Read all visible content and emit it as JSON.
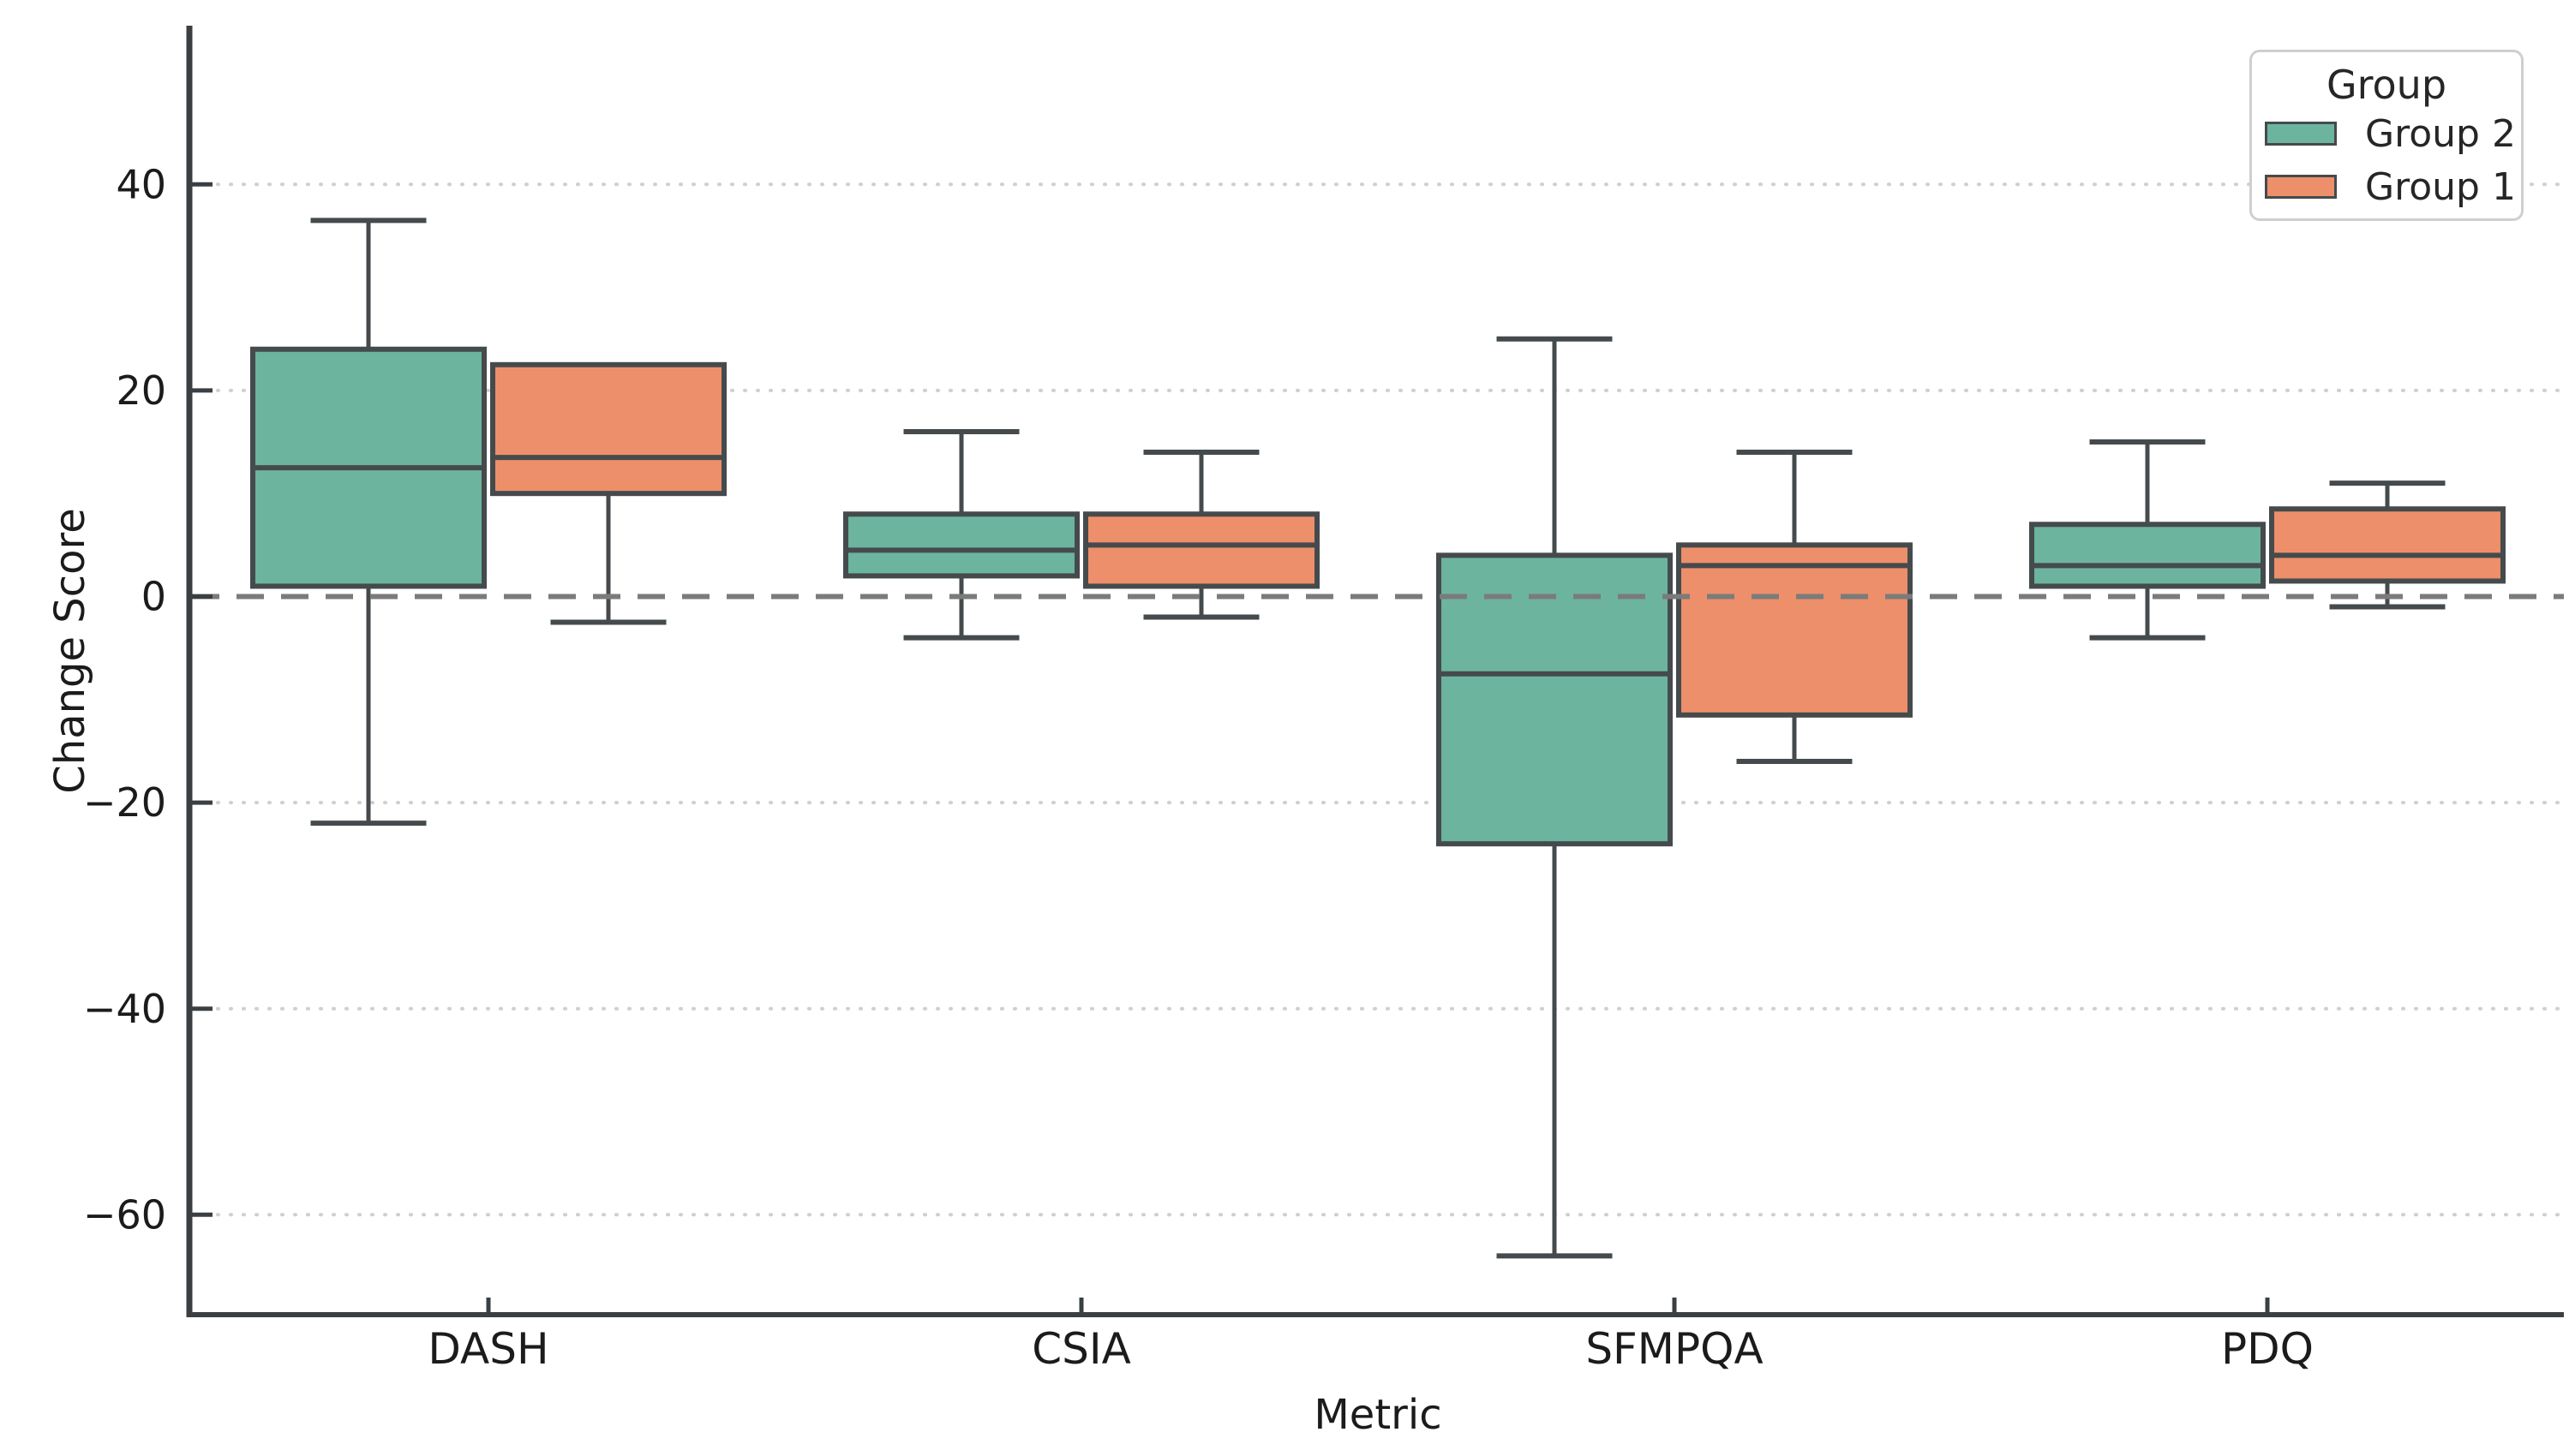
{
  "figure": {
    "background_color": "#ffffff"
  },
  "chart_data": {
    "type": "box",
    "title": "",
    "xlabel": "Metric",
    "ylabel": "Change Score",
    "categories": [
      "DASH",
      "CSIA",
      "SFMPQA",
      "PDQ"
    ],
    "ylim": [
      -69.7,
      55.4
    ],
    "yticks": [
      {
        "label": "40",
        "value": 40
      },
      {
        "label": "20",
        "value": 20
      },
      {
        "label": "0",
        "value": 0
      },
      {
        "label": "−20",
        "value": -20
      },
      {
        "label": "−40",
        "value": -40
      },
      {
        "label": "−60",
        "value": -60
      }
    ],
    "grid": {
      "visible": true,
      "style": "dotted",
      "color": "#cfcfcf"
    },
    "zero_reference_line": {
      "value": 0,
      "style": "dashed",
      "color": "#7b7b7b"
    },
    "box_edge_color": "#454a4d",
    "spine_color": "#3a3f42",
    "legend": {
      "title": "Group",
      "position": "top-right",
      "entries": [
        {
          "label": "Group 2",
          "color": "#6cb49d"
        },
        {
          "label": "Group 1",
          "color": "#ec8f6a"
        }
      ]
    },
    "series": [
      {
        "name": "Group 2",
        "color": "#6cb49d",
        "boxes": [
          {
            "category": "DASH",
            "whislo": -22,
            "q1": 1,
            "med": 12.5,
            "q3": 24,
            "whishi": 36.5
          },
          {
            "category": "CSIA",
            "whislo": -4,
            "q1": 2,
            "med": 4.5,
            "q3": 8,
            "whishi": 16
          },
          {
            "category": "SFMPQA",
            "whislo": -64,
            "q1": -24,
            "med": -7.5,
            "q3": 4,
            "whishi": 25
          },
          {
            "category": "PDQ",
            "whislo": -4,
            "q1": 1,
            "med": 3,
            "q3": 7,
            "whishi": 15
          }
        ]
      },
      {
        "name": "Group 1",
        "color": "#ec8f6a",
        "boxes": [
          {
            "category": "DASH",
            "whislo": -2.5,
            "q1": 10,
            "med": 13.5,
            "q3": 22.5,
            "whishi": 22.5
          },
          {
            "category": "CSIA",
            "whislo": -2,
            "q1": 1,
            "med": 5,
            "q3": 8,
            "whishi": 14
          },
          {
            "category": "SFMPQA",
            "whislo": -16,
            "q1": -11.5,
            "med": 3,
            "q3": 5,
            "whishi": 14
          },
          {
            "category": "PDQ",
            "whislo": -1,
            "q1": 1.5,
            "med": 4,
            "q3": 8.5,
            "whishi": 11
          }
        ]
      }
    ]
  }
}
